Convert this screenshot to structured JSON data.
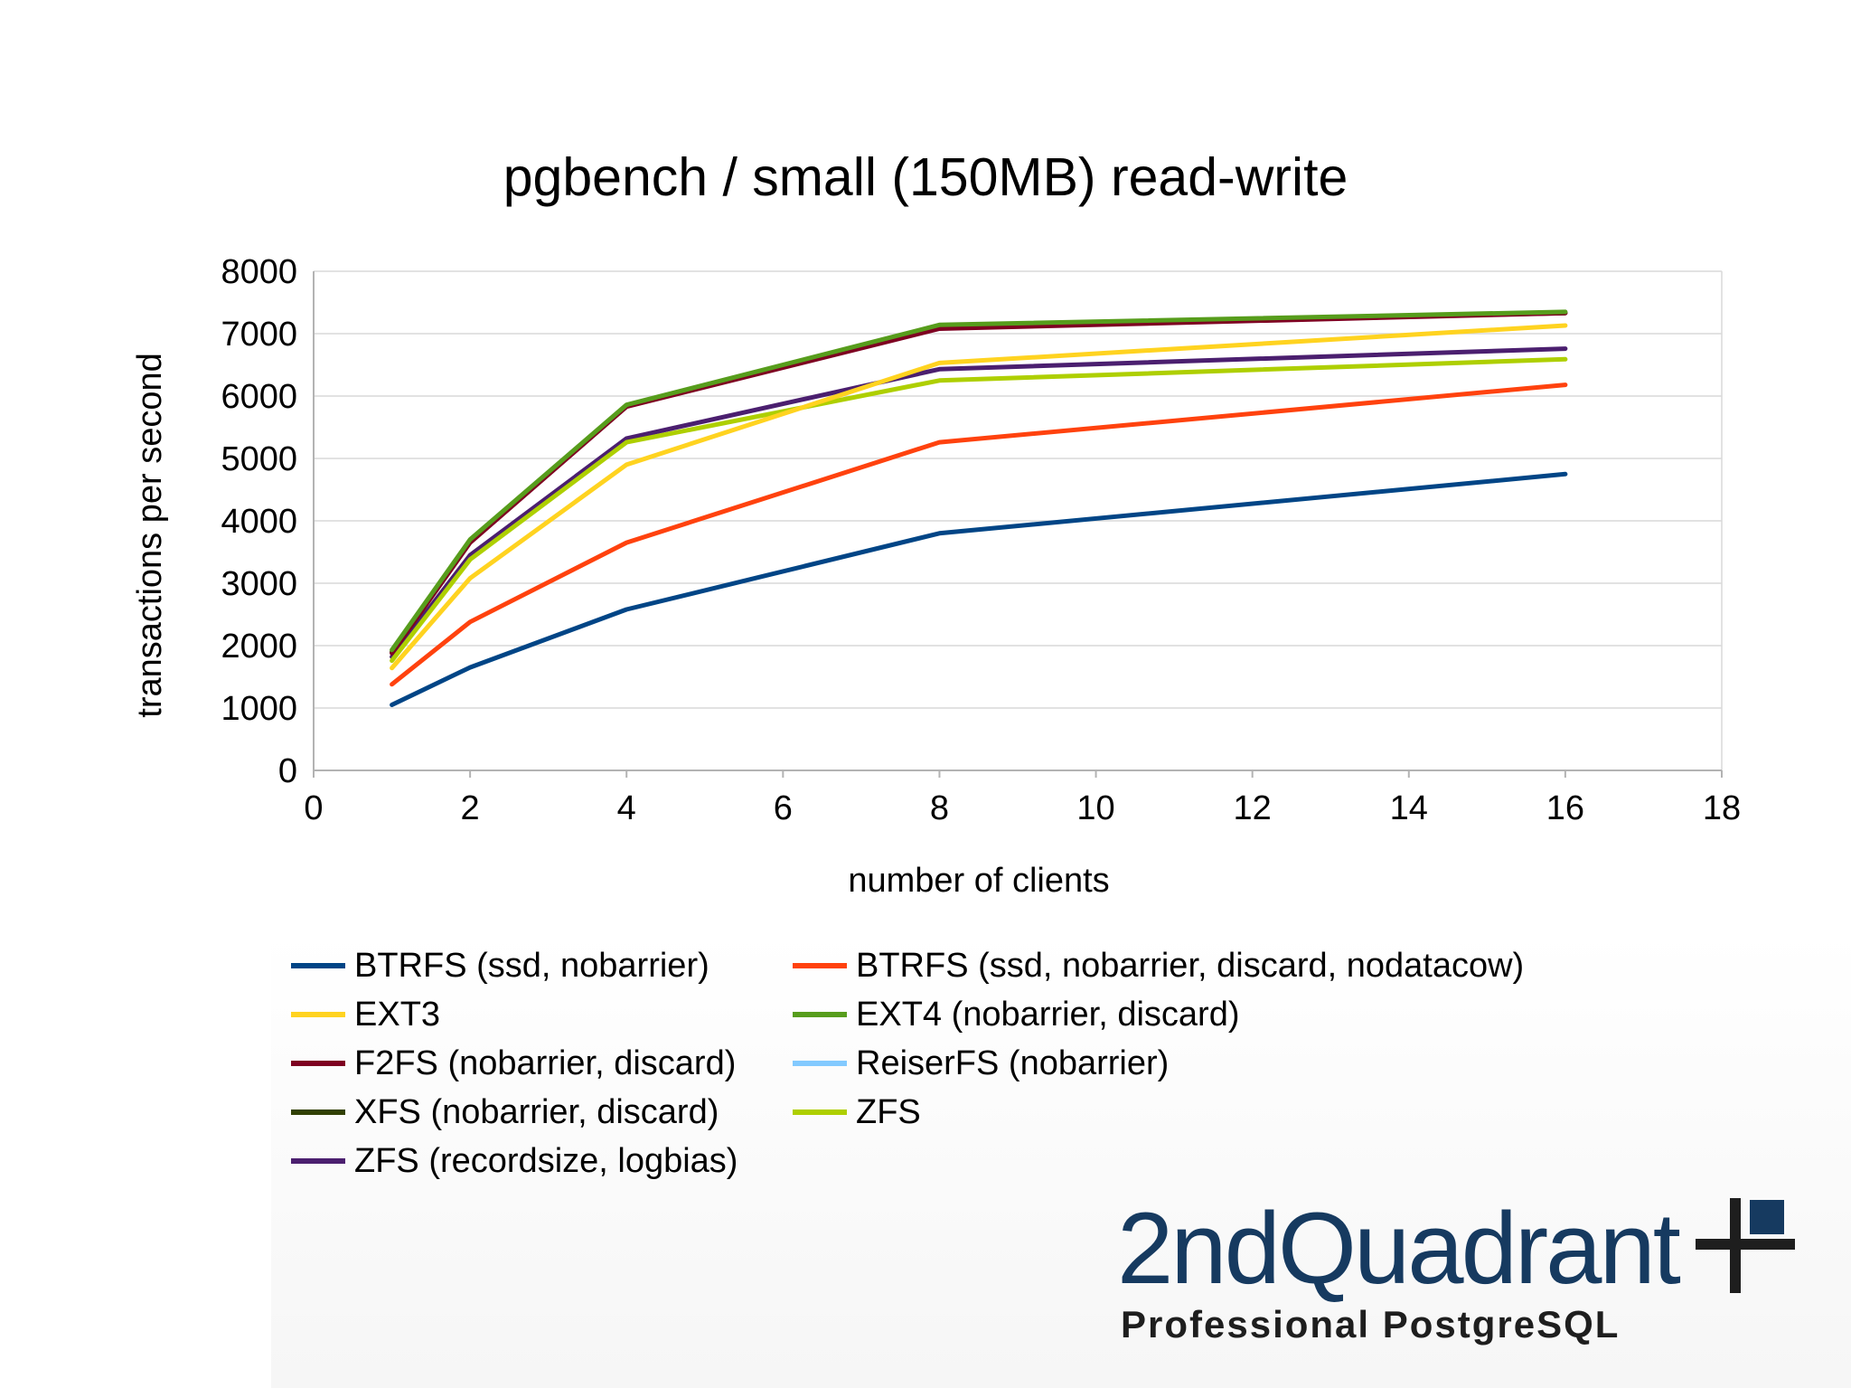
{
  "chart_data": {
    "type": "line",
    "title": "pgbench / small (150MB) read-write",
    "xlabel": "number of clients",
    "ylabel": "transactions per second",
    "xlim": [
      0,
      18
    ],
    "ylim": [
      0,
      8000
    ],
    "xticks": [
      0,
      2,
      4,
      6,
      8,
      10,
      12,
      14,
      16,
      18
    ],
    "yticks": [
      0,
      1000,
      2000,
      3000,
      4000,
      5000,
      6000,
      7000,
      8000
    ],
    "grid": "horizontal",
    "legend_position": "bottom",
    "x": [
      1,
      2,
      4,
      8,
      16
    ],
    "series": [
      {
        "name": "BTRFS (ssd, nobarrier)",
        "color": "#004586",
        "values": [
          1050,
          1650,
          2580,
          3800,
          4750
        ]
      },
      {
        "name": "BTRFS (ssd, nobarrier, discard, nodatacow)",
        "color": "#ff420e",
        "values": [
          1380,
          2380,
          3650,
          5260,
          6180
        ]
      },
      {
        "name": "EXT3",
        "color": "#ffd320",
        "values": [
          1640,
          3080,
          4900,
          6530,
          7130
        ]
      },
      {
        "name": "EXT4 (nobarrier, discard)",
        "color": "#579d1c",
        "values": [
          1930,
          3700,
          5860,
          7140,
          7350
        ]
      },
      {
        "name": "F2FS (nobarrier, discard)",
        "color": "#7e0021",
        "values": [
          1880,
          3650,
          5830,
          7080,
          7330
        ]
      },
      {
        "name": "ReiserFS (nobarrier)",
        "color": "#83caff",
        "values": [
          1890,
          3670,
          5840,
          7110,
          7340
        ]
      },
      {
        "name": "XFS (nobarrier, discard)",
        "color": "#314004",
        "values": [
          1900,
          3660,
          5850,
          7120,
          7330
        ]
      },
      {
        "name": "ZFS",
        "color": "#aecf00",
        "values": [
          1760,
          3380,
          5260,
          6250,
          6590
        ]
      },
      {
        "name": "ZFS (recordsize, logbias)",
        "color": "#4b1f6f",
        "values": [
          1820,
          3450,
          5320,
          6430,
          6760
        ]
      }
    ]
  },
  "logo": {
    "wordmark": "2ndQuadrant",
    "tagline": "Professional PostgreSQL"
  }
}
